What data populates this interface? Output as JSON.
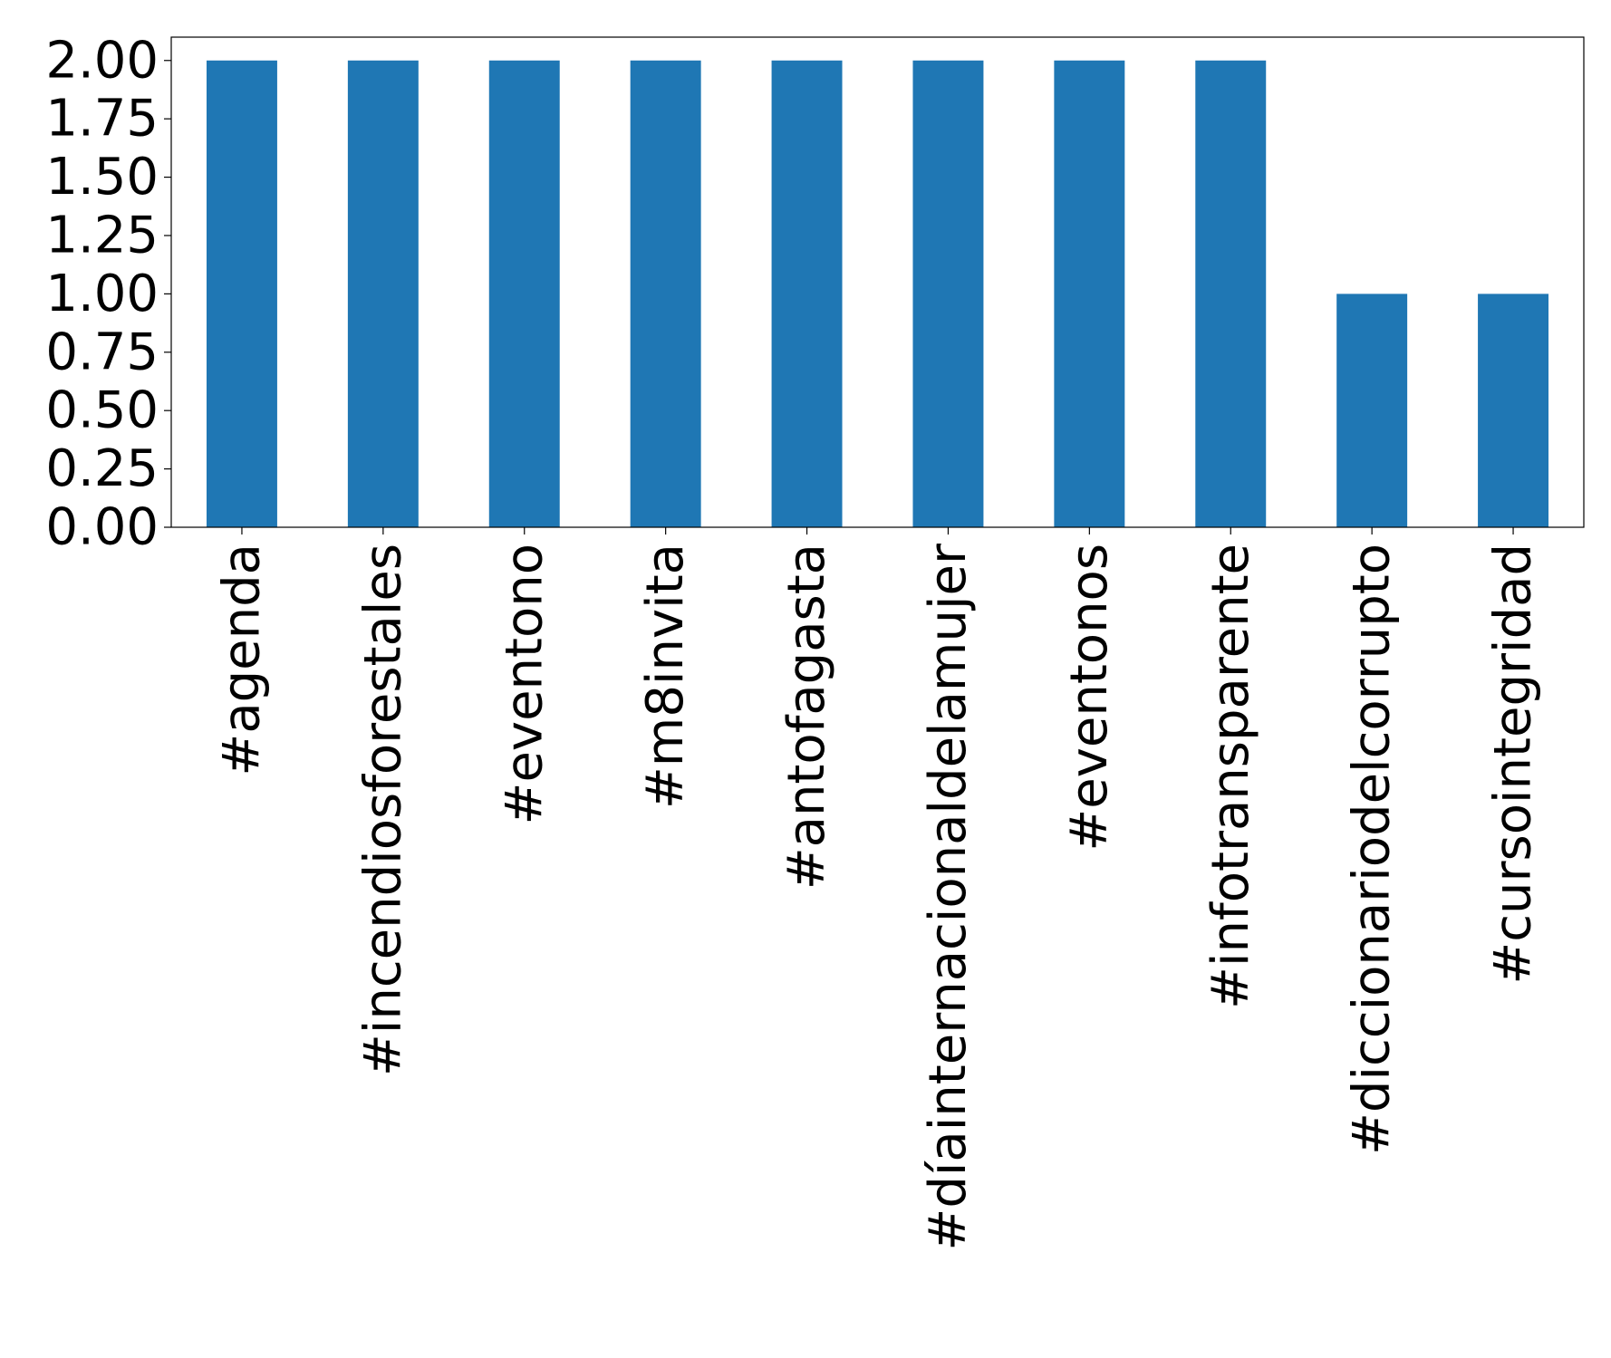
{
  "chart_data": {
    "type": "bar",
    "categories": [
      "#agenda",
      "#incendiosforestales",
      "#eventono",
      "#m8invita",
      "#antofagasta",
      "#díainternacionaldelamujer",
      "#eventonos",
      "#infotransparente",
      "#diccionariodelcorrupto",
      "#cursointegridad"
    ],
    "values": [
      2,
      2,
      2,
      2,
      2,
      2,
      2,
      2,
      1,
      1
    ],
    "ylim": [
      0,
      2.1
    ],
    "yticks": [
      "0.00",
      "0.25",
      "0.50",
      "0.75",
      "1.00",
      "1.25",
      "1.50",
      "1.75",
      "2.00"
    ],
    "ytick_values": [
      0,
      0.25,
      0.5,
      0.75,
      1.0,
      1.25,
      1.5,
      1.75,
      2.0
    ],
    "grid": false,
    "bar_color": "#1f77b4"
  }
}
